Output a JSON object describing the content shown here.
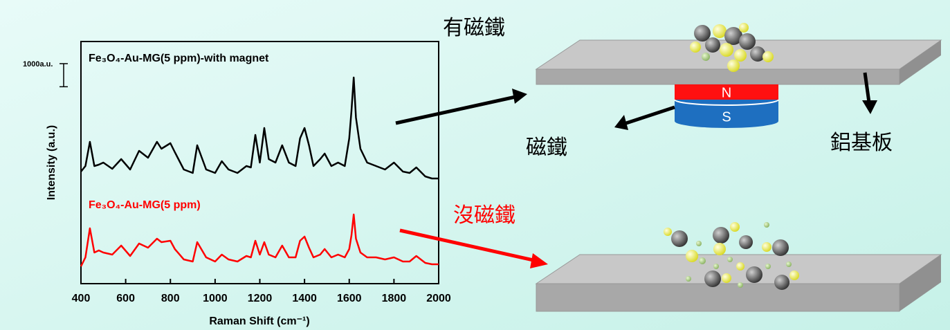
{
  "chart_data": {
    "type": "line",
    "x_label": "Raman Shift (cm⁻¹)",
    "y_label": "Intensity (a.u.)",
    "scale_bar": {
      "value": 1000,
      "label": "1000a.u."
    },
    "x": [
      400,
      420,
      440,
      460,
      480,
      500,
      540,
      580,
      620,
      660,
      700,
      740,
      760,
      800,
      820,
      860,
      900,
      920,
      960,
      1000,
      1030,
      1060,
      1100,
      1140,
      1160,
      1180,
      1200,
      1220,
      1240,
      1270,
      1300,
      1330,
      1360,
      1380,
      1400,
      1420,
      1440,
      1470,
      1490,
      1520,
      1550,
      1580,
      1600,
      1610,
      1620,
      1630,
      1650,
      1680,
      1720,
      1760,
      1800,
      1840,
      1870,
      1900,
      1940,
      1970,
      2000
    ],
    "series": [
      {
        "name": "Fe₃O₄-Au-MG(5 ppm)-with magnet",
        "color": "#000000",
        "values": [
          4860,
          5100,
          6150,
          5100,
          5160,
          5250,
          4980,
          5400,
          4950,
          5760,
          5460,
          6150,
          5850,
          6090,
          5700,
          4950,
          4800,
          6000,
          4950,
          4800,
          5310,
          4950,
          4800,
          5100,
          5040,
          6450,
          5250,
          6750,
          5400,
          5250,
          6000,
          5250,
          5100,
          6300,
          6750,
          6000,
          5100,
          5400,
          5640,
          5100,
          5250,
          5100,
          6300,
          7500,
          8940,
          7200,
          5850,
          5250,
          5100,
          4950,
          5250,
          4860,
          4800,
          5040,
          4650,
          4560,
          4560
        ]
      },
      {
        "name": "Fe₃O₄-Au-MG(5 ppm)",
        "color": "#ff0000",
        "values": [
          750,
          1140,
          2400,
          1350,
          1440,
          1350,
          1260,
          1650,
          1200,
          1740,
          1560,
          1950,
          1800,
          1860,
          1500,
          1050,
          960,
          1800,
          1140,
          960,
          1260,
          1050,
          960,
          1200,
          1140,
          1860,
          1260,
          1800,
          1260,
          1140,
          1650,
          1140,
          1140,
          1860,
          2040,
          1560,
          1140,
          1260,
          1500,
          1140,
          1260,
          1140,
          1500,
          2100,
          3000,
          1950,
          1350,
          1140,
          1140,
          1050,
          1140,
          960,
          960,
          1200,
          900,
          840,
          840
        ]
      }
    ],
    "xlim": [
      400,
      2000
    ],
    "xticks": [
      400,
      600,
      800,
      1000,
      1200,
      1400,
      1600,
      1800,
      2000
    ],
    "ylim": [
      0,
      10500
    ]
  },
  "diagram": {
    "with_magnet": "有磁鐵",
    "magnet": "磁鐵",
    "substrate": "鋁基板",
    "without_magnet": "沒磁鐵",
    "north": "N",
    "south": "S"
  }
}
